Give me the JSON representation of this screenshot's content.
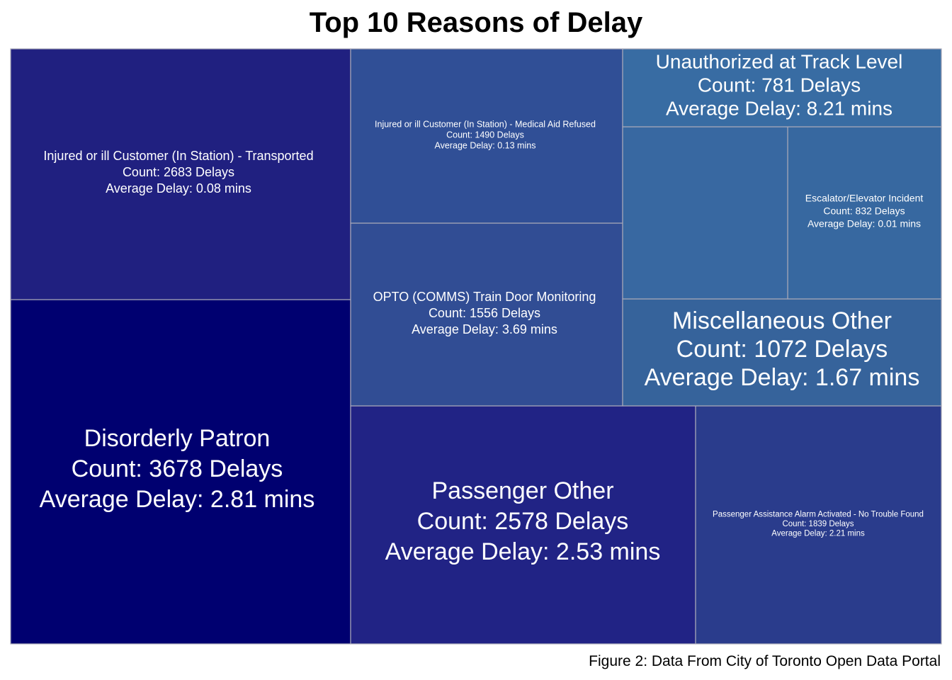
{
  "chart_data": {
    "type": "treemap",
    "title": "Top 10 Reasons of Delay",
    "caption": "Figure 2: Data From City of Toronto Open Data Portal",
    "count_prefix": "Count: ",
    "count_suffix": " Delays",
    "avg_prefix": "Average Delay: ",
    "avg_suffix": " mins",
    "border_color": "#a9a9b8",
    "color_scale": {
      "low_avg": 0.01,
      "high_avg": 8.21,
      "note": "fill shade reflects rank"
    },
    "items": [
      {
        "name": "Disorderly Patron",
        "count": 3678,
        "avg_delay": 2.81,
        "color": "#000070"
      },
      {
        "name": "Injured or ill Customer (In Station) - Transported",
        "count": 2683,
        "avg_delay": 0.08,
        "color": "#202080"
      },
      {
        "name": "Passenger Other",
        "count": 2578,
        "avg_delay": 2.53,
        "color": "#212385"
      },
      {
        "name": "Passenger Assistance Alarm Activated - No Trouble Found",
        "count": 1839,
        "avg_delay": 2.21,
        "color": "#2a3c8c"
      },
      {
        "name": "OPTO (COMMS) Train Door Monitoring",
        "count": 1556,
        "avg_delay": 3.69,
        "color": "#314d94"
      },
      {
        "name": "Injured or ill Customer (In Station) - Medical Aid Refused",
        "count": 1490,
        "avg_delay": 0.13,
        "color": "#304f96"
      },
      {
        "name": "Miscellaneous Other",
        "count": 1072,
        "avg_delay": 1.67,
        "color": "#36639b"
      },
      {
        "name": "Escalator/Elevator Incident",
        "count": 832,
        "avg_delay": 0.01,
        "color": "#3768a0"
      },
      {
        "name": "",
        "count": null,
        "avg_delay": null,
        "color": "#3868a1"
      },
      {
        "name": "Unauthorized at Track Level",
        "count": 781,
        "avg_delay": 8.21,
        "color": "#386ca3"
      }
    ]
  }
}
